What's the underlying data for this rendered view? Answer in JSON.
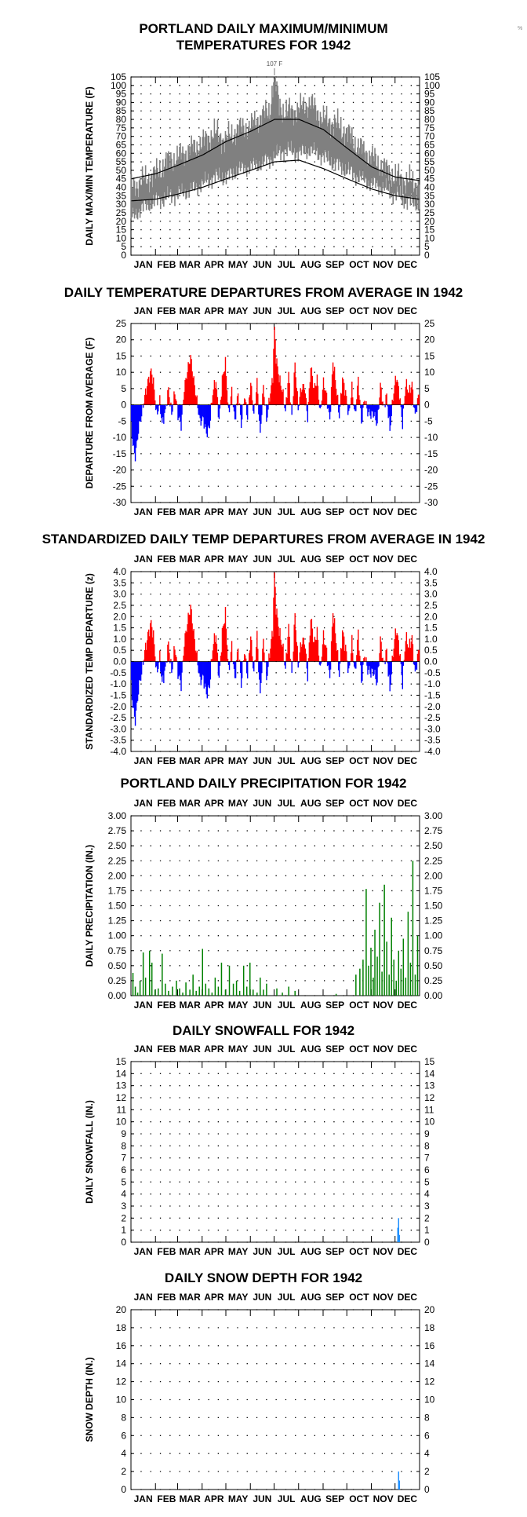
{
  "corner_mark": "%",
  "colors": {
    "temp_band": "#808080",
    "normal_lines": "#000000",
    "departure_positive": "#ff0000",
    "departure_negative": "#0000ff",
    "precipitation": "#008000",
    "snow": "#1e90ff"
  },
  "month_labels": [
    "JAN",
    "FEB",
    "MAR",
    "APR",
    "MAY",
    "JUN",
    "JUL",
    "AUG",
    "SEP",
    "OCT",
    "NOV",
    "DEC"
  ],
  "chart_data": [
    {
      "id": "temps",
      "type": "area",
      "title_lines": [
        "PORTLAND DAILY MAXIMUM/MINIMUM",
        "TEMPERATURES FOR 1942"
      ],
      "ylabel": "DAILY MAX/MIN TEMPERATURE (F)",
      "ylim": [
        0,
        105
      ],
      "ytick_step": 5,
      "grid": true,
      "annotation": "107 F",
      "annotation_day": 182,
      "series": [
        {
          "values_from": "daily max/min band 1942",
          "max_anchor": {
            "day": [
              1,
              15,
              32,
              46,
              60,
              74,
              91,
              105,
              121,
              135,
              152,
              166,
              176,
              182,
              188,
              196,
              213,
              227,
              244,
              258,
              274,
              288,
              305,
              319,
              335,
              350,
              365
            ],
            "value": [
              40,
              44,
              48,
              55,
              58,
              62,
              66,
              72,
              68,
              74,
              76,
              82,
              85,
              107,
              88,
              84,
              86,
              90,
              80,
              78,
              72,
              64,
              58,
              52,
              46,
              44,
              42
            ]
          },
          "min_anchor": {
            "day": [
              1,
              15,
              32,
              46,
              60,
              74,
              91,
              105,
              121,
              135,
              152,
              166,
              182,
              196,
              213,
              227,
              244,
              258,
              274,
              288,
              305,
              319,
              335,
              350,
              365
            ],
            "value": [
              22,
              28,
              32,
              34,
              36,
              38,
              42,
              46,
              46,
              50,
              52,
              54,
              58,
              62,
              60,
              62,
              58,
              54,
              50,
              46,
              42,
              40,
              36,
              32,
              30
            ]
          }
        },
        {
          "name": "",
          "kind": "normal_max",
          "day": [
            1,
            32,
            60,
            91,
            121,
            152,
            182,
            213,
            244,
            274,
            305,
            335,
            365
          ],
          "value": [
            45,
            48,
            53,
            59,
            67,
            73,
            80,
            80,
            74,
            63,
            52,
            46,
            44
          ]
        },
        {
          "name": "",
          "kind": "normal_min",
          "day": [
            1,
            32,
            60,
            91,
            121,
            152,
            182,
            213,
            244,
            274,
            305,
            335,
            365
          ],
          "value": [
            32,
            33,
            36,
            40,
            45,
            50,
            55,
            56,
            51,
            45,
            39,
            35,
            33
          ]
        }
      ]
    },
    {
      "id": "departures",
      "type": "bar",
      "title_lines": [
        "DAILY TEMPERATURE DEPARTURES FROM AVERAGE IN 1942"
      ],
      "ylabel": "DEPARTURE FROM AVERAGE (F)",
      "ylim": [
        -30,
        25
      ],
      "ytick_step": 5,
      "grid": true,
      "anchors": {
        "day": [
          1,
          3,
          6,
          10,
          14,
          18,
          22,
          26,
          29,
          33,
          37,
          40,
          44,
          48,
          52,
          56,
          60,
          64,
          68,
          72,
          76,
          80,
          84,
          88,
          92,
          96,
          100,
          104,
          108,
          112,
          116,
          120,
          124,
          128,
          132,
          136,
          140,
          144,
          148,
          152,
          156,
          160,
          164,
          168,
          172,
          176,
          180,
          182,
          184,
          188,
          192,
          196,
          200,
          204,
          208,
          212,
          216,
          220,
          224,
          228,
          232,
          236,
          240,
          244,
          248,
          252,
          256,
          260,
          264,
          268,
          272,
          276,
          280,
          284,
          288,
          292,
          296,
          300,
          304,
          308,
          312,
          316,
          320,
          324,
          328,
          332,
          336,
          340,
          344,
          348,
          352,
          356,
          360,
          365
        ],
        "value": [
          -6,
          -12,
          -15,
          -8,
          -4,
          3,
          8,
          10,
          6,
          -3,
          2,
          -6,
          -3,
          5,
          -2,
          4,
          -4,
          -6,
          6,
          10,
          14,
          8,
          2,
          -6,
          -5,
          -8,
          -6,
          3,
          7,
          -4,
          8,
          12,
          -3,
          5,
          -5,
          3,
          -6,
          4,
          -4,
          6,
          -3,
          8,
          -10,
          5,
          -4,
          3,
          8,
          24,
          14,
          9,
          5,
          -3,
          9,
          -3,
          13,
          -2,
          5,
          7,
          -4,
          11,
          5,
          9,
          -3,
          6,
          3,
          -4,
          13,
          5,
          -3,
          9,
          3,
          -4,
          6,
          -3,
          7,
          -6,
          3,
          -2,
          -4,
          -3,
          -5,
          6,
          -2,
          3,
          -7,
          2,
          8,
          4,
          -5,
          6,
          3,
          7,
          -3,
          3
        ]
      }
    },
    {
      "id": "standardized",
      "type": "bar",
      "title_lines": [
        "STANDARDIZED DAILY TEMP DEPARTURES FROM AVERAGE IN 1942"
      ],
      "ylabel": "STANDARDIZED TEMP DEPARTURE (z)",
      "ylim": [
        -4.0,
        4.0
      ],
      "ytick_step": 0.5,
      "tick_decimals": 1,
      "grid": true,
      "derived_from": "departures",
      "scale_factor": 0.165
    },
    {
      "id": "precip",
      "type": "bar",
      "title_lines": [
        "PORTLAND DAILY PRECIPITATION FOR 1942"
      ],
      "ylabel": "DAILY PRECIPITATION (IN.)",
      "ylim": [
        0,
        3.0
      ],
      "ytick_step": 0.25,
      "tick_decimals": 2,
      "grid": true,
      "days": [
        3,
        6,
        9,
        12,
        16,
        19,
        24,
        27,
        31,
        35,
        40,
        44,
        48,
        53,
        58,
        62,
        66,
        70,
        75,
        79,
        83,
        87,
        91,
        95,
        99,
        103,
        107,
        111,
        115,
        120,
        125,
        130,
        134,
        138,
        143,
        147,
        151,
        155,
        160,
        164,
        168,
        172,
        185,
        192,
        200,
        208,
        260,
        285,
        290,
        294,
        298,
        301,
        304,
        307,
        309,
        312,
        315,
        318,
        321,
        324,
        327,
        330,
        333,
        336,
        339,
        342,
        345,
        348,
        351,
        354,
        357,
        360,
        363
      ],
      "values": [
        0.38,
        0.15,
        0.05,
        0.25,
        0.72,
        0.3,
        0.75,
        0.55,
        0.1,
        0.12,
        0.7,
        0.2,
        0.08,
        0.15,
        0.25,
        0.12,
        0.05,
        0.22,
        0.1,
        0.35,
        0.08,
        0.15,
        0.78,
        0.2,
        0.12,
        0.05,
        0.3,
        0.15,
        0.55,
        0.1,
        0.5,
        0.2,
        0.25,
        0.08,
        0.5,
        0.15,
        0.55,
        0.1,
        0.05,
        0.3,
        0.1,
        0.2,
        0.12,
        0.05,
        0.15,
        0.08,
        0.03,
        0.35,
        0.45,
        0.6,
        1.78,
        0.5,
        0.8,
        0.3,
        1.1,
        0.65,
        1.55,
        0.4,
        1.85,
        0.9,
        0.35,
        1.3,
        0.6,
        0.25,
        0.75,
        0.45,
        0.95,
        0.3,
        1.4,
        0.55,
        2.25,
        0.35,
        1.0
      ]
    },
    {
      "id": "snowfall",
      "type": "bar",
      "title_lines": [
        "DAILY SNOWFALL FOR 1942"
      ],
      "ylabel": "DAILY SNOWFALL (IN.)",
      "ylim": [
        0,
        15
      ],
      "ytick_step": 1,
      "grid": true,
      "days": [
        338,
        339,
        340
      ],
      "values": [
        1.2,
        2.0,
        0.6
      ]
    },
    {
      "id": "snowdepth",
      "type": "bar",
      "title_lines": [
        "DAILY SNOW DEPTH FOR 1942"
      ],
      "ylabel": "SNOW DEPTH (IN.)",
      "ylim": [
        0,
        20
      ],
      "ytick_step": 2,
      "grid": true,
      "days": [
        339,
        340
      ],
      "values": [
        2.0,
        1.0
      ]
    }
  ]
}
